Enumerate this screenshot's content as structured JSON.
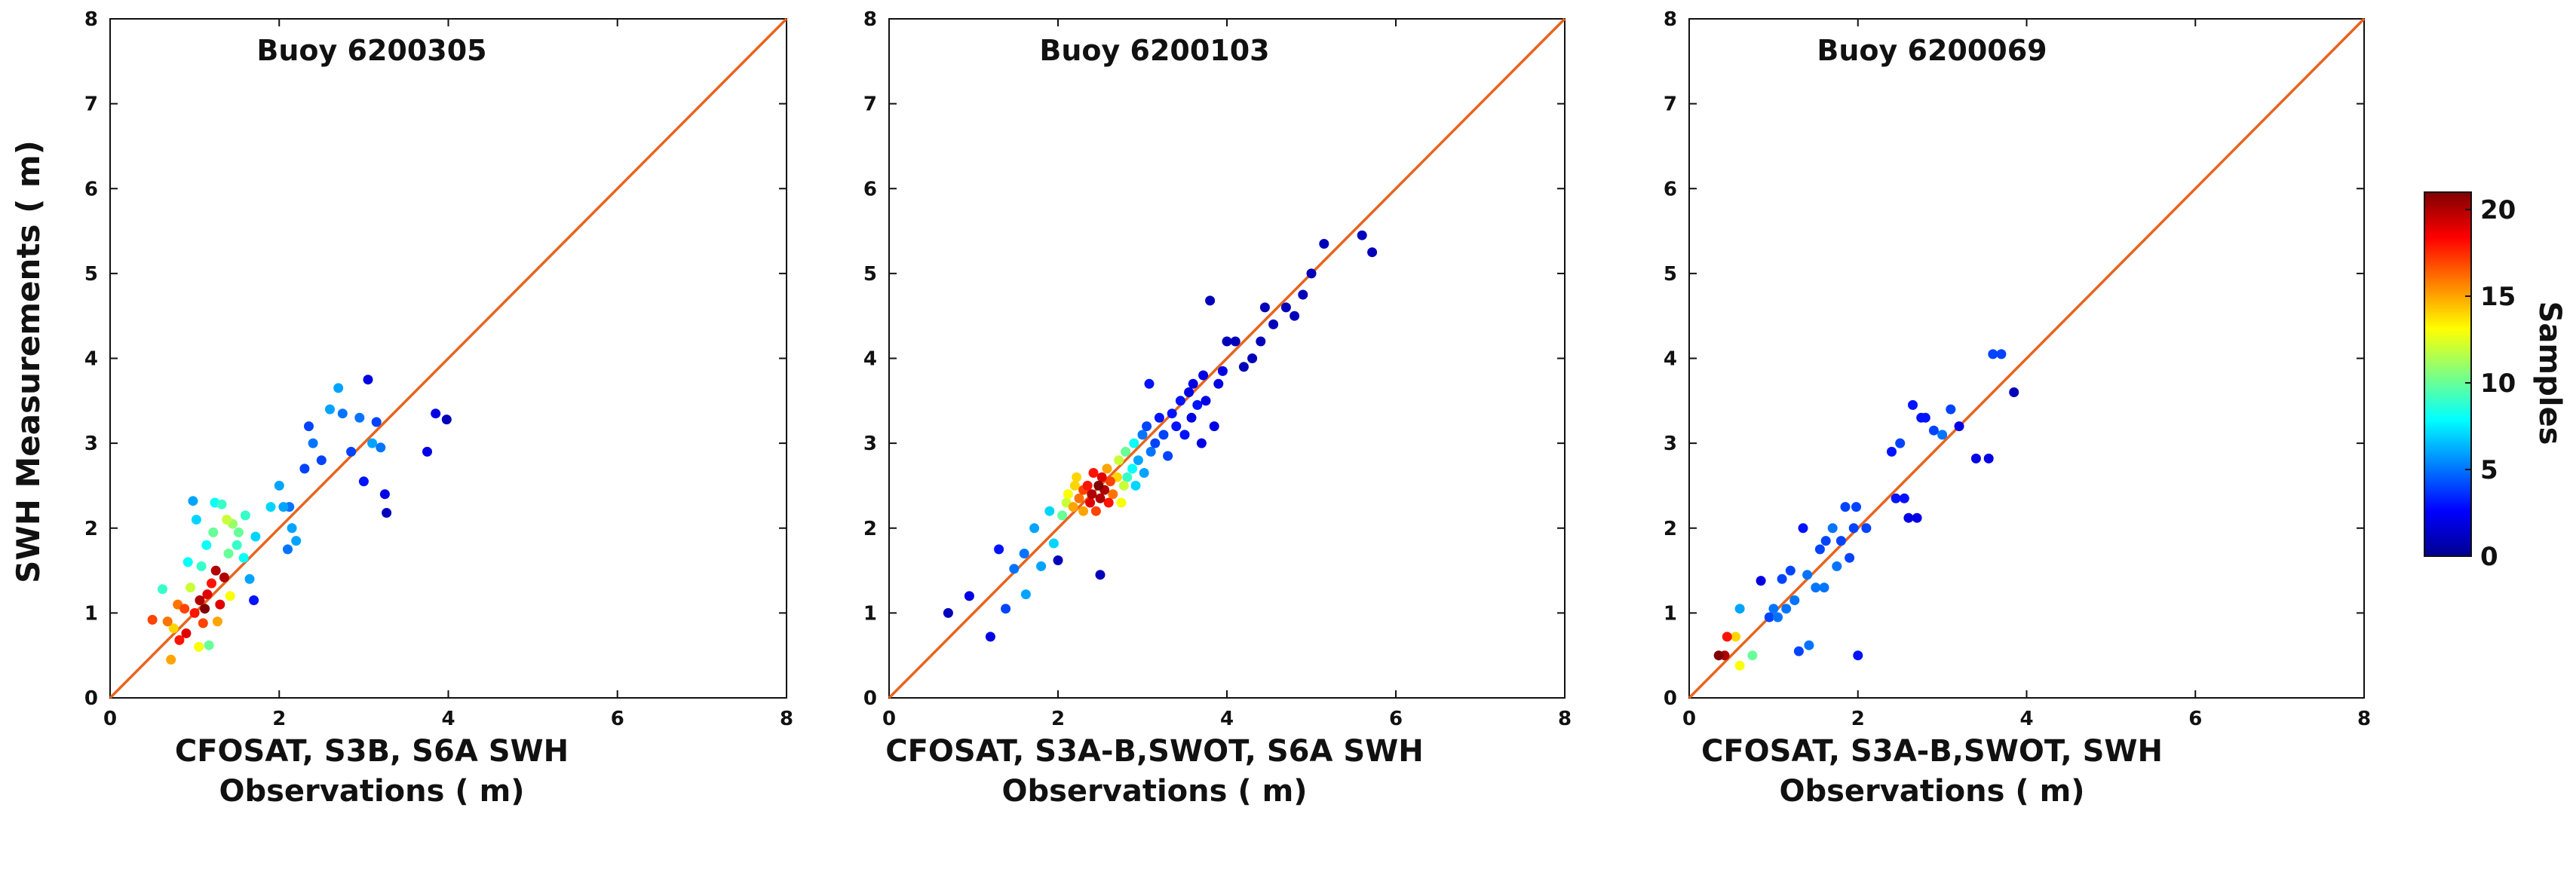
{
  "colors": {
    "identity_line": "#e8641e",
    "axis": "#111111",
    "colormap": [
      "#00008f",
      "#0000ff",
      "#0080ff",
      "#00ffff",
      "#80ff80",
      "#ffff00",
      "#ff8000",
      "#ff0000",
      "#800000"
    ]
  },
  "chart_data": [
    {
      "type": "scatter",
      "title": "Buoy 6200305",
      "xlabel_line1": "CFOSAT, S3B, S6A SWH",
      "xlabel_line2": "Observations ( m)",
      "ylabel": "SWH Measurements ( m)",
      "xlim": [
        0,
        8
      ],
      "ylim": [
        0,
        8
      ],
      "xticks": [
        "0",
        "2",
        "4",
        "6",
        "8"
      ],
      "yticks": [
        "0",
        "1",
        "2",
        "3",
        "4",
        "5",
        "6",
        "7",
        "8"
      ],
      "identity_line": true,
      "color_label": "Samples",
      "points": [
        [
          0.5,
          0.92,
          17
        ],
        [
          0.62,
          1.28,
          9
        ],
        [
          0.68,
          0.9,
          16
        ],
        [
          0.72,
          0.45,
          15
        ],
        [
          0.75,
          0.82,
          14
        ],
        [
          0.8,
          1.1,
          16
        ],
        [
          0.82,
          0.68,
          18
        ],
        [
          0.88,
          1.05,
          17
        ],
        [
          0.9,
          0.76,
          19
        ],
        [
          0.92,
          1.6,
          8
        ],
        [
          0.95,
          1.3,
          12
        ],
        [
          0.98,
          2.32,
          6
        ],
        [
          1.0,
          1.0,
          18
        ],
        [
          1.02,
          2.1,
          7
        ],
        [
          1.05,
          0.6,
          13
        ],
        [
          1.06,
          1.15,
          20
        ],
        [
          1.08,
          1.55,
          9
        ],
        [
          1.1,
          0.88,
          17
        ],
        [
          1.12,
          1.05,
          21
        ],
        [
          1.14,
          1.8,
          8
        ],
        [
          1.15,
          1.22,
          19
        ],
        [
          1.17,
          0.62,
          10
        ],
        [
          1.2,
          1.35,
          18
        ],
        [
          1.22,
          1.95,
          10
        ],
        [
          1.24,
          2.3,
          8
        ],
        [
          1.25,
          1.5,
          20
        ],
        [
          1.27,
          0.9,
          15
        ],
        [
          1.3,
          1.1,
          19
        ],
        [
          1.32,
          2.28,
          9
        ],
        [
          1.35,
          1.42,
          20
        ],
        [
          1.38,
          2.1,
          12
        ],
        [
          1.4,
          1.7,
          10
        ],
        [
          1.42,
          1.2,
          13
        ],
        [
          1.45,
          2.05,
          11
        ],
        [
          1.5,
          1.8,
          9
        ],
        [
          1.52,
          1.95,
          10
        ],
        [
          1.58,
          1.65,
          8
        ],
        [
          1.6,
          2.15,
          9
        ],
        [
          1.65,
          1.4,
          6
        ],
        [
          1.7,
          1.15,
          3
        ],
        [
          1.72,
          1.9,
          7
        ],
        [
          1.9,
          2.25,
          7
        ],
        [
          2.0,
          2.5,
          6
        ],
        [
          2.05,
          2.25,
          6
        ],
        [
          2.1,
          1.75,
          5
        ],
        [
          2.12,
          2.25,
          5
        ],
        [
          2.15,
          2.0,
          6
        ],
        [
          2.2,
          1.85,
          6
        ],
        [
          2.3,
          2.7,
          4
        ],
        [
          2.35,
          3.2,
          4
        ],
        [
          2.4,
          3.0,
          5
        ],
        [
          2.5,
          2.8,
          4
        ],
        [
          2.6,
          3.4,
          6
        ],
        [
          2.7,
          3.65,
          6
        ],
        [
          2.75,
          3.35,
          5
        ],
        [
          2.85,
          2.9,
          4
        ],
        [
          2.95,
          3.3,
          5
        ],
        [
          3.0,
          2.55,
          3
        ],
        [
          3.05,
          3.75,
          2
        ],
        [
          3.1,
          3.0,
          6
        ],
        [
          3.15,
          3.25,
          4
        ],
        [
          3.2,
          2.95,
          5
        ],
        [
          3.25,
          2.4,
          2
        ],
        [
          3.27,
          2.18,
          1
        ],
        [
          3.75,
          2.9,
          2
        ],
        [
          3.85,
          3.35,
          2
        ],
        [
          3.98,
          3.28,
          1
        ]
      ]
    },
    {
      "type": "scatter",
      "title": "Buoy 6200103",
      "xlabel_line1": "CFOSAT, S3A-B,SWOT, S6A SWH",
      "xlabel_line2": "Observations ( m)",
      "xlim": [
        0,
        8
      ],
      "ylim": [
        0,
        8
      ],
      "xticks": [
        "0",
        "2",
        "4",
        "6",
        "8"
      ],
      "yticks": [
        "0",
        "1",
        "2",
        "3",
        "4",
        "5",
        "6",
        "7",
        "8"
      ],
      "identity_line": true,
      "points": [
        [
          0.7,
          1.0,
          1
        ],
        [
          0.95,
          1.2,
          2
        ],
        [
          1.2,
          0.72,
          2
        ],
        [
          1.3,
          1.75,
          3
        ],
        [
          1.38,
          1.05,
          4
        ],
        [
          1.48,
          1.52,
          5
        ],
        [
          1.6,
          1.7,
          5
        ],
        [
          1.62,
          1.22,
          6
        ],
        [
          1.72,
          2.0,
          6
        ],
        [
          1.8,
          1.55,
          6
        ],
        [
          1.9,
          2.2,
          7
        ],
        [
          1.95,
          1.82,
          7
        ],
        [
          2.0,
          1.62,
          1
        ],
        [
          2.05,
          2.15,
          10
        ],
        [
          2.1,
          2.3,
          12
        ],
        [
          2.12,
          2.4,
          13
        ],
        [
          2.18,
          2.25,
          15
        ],
        [
          2.2,
          2.5,
          14
        ],
        [
          2.22,
          2.6,
          14
        ],
        [
          2.25,
          2.35,
          16
        ],
        [
          2.3,
          2.2,
          15
        ],
        [
          2.3,
          2.45,
          17
        ],
        [
          2.35,
          2.5,
          18
        ],
        [
          2.38,
          2.3,
          19
        ],
        [
          2.4,
          2.4,
          20
        ],
        [
          2.42,
          2.65,
          18
        ],
        [
          2.45,
          2.2,
          17
        ],
        [
          2.48,
          2.5,
          21
        ],
        [
          2.5,
          2.35,
          20
        ],
        [
          2.5,
          1.45,
          1
        ],
        [
          2.52,
          2.6,
          19
        ],
        [
          2.55,
          2.45,
          20
        ],
        [
          2.58,
          2.7,
          15
        ],
        [
          2.6,
          2.3,
          18
        ],
        [
          2.62,
          2.55,
          17
        ],
        [
          2.65,
          2.4,
          16
        ],
        [
          2.7,
          2.6,
          14
        ],
        [
          2.72,
          2.8,
          12
        ],
        [
          2.75,
          2.3,
          13
        ],
        [
          2.78,
          2.5,
          12
        ],
        [
          2.8,
          2.9,
          10
        ],
        [
          2.82,
          2.6,
          9
        ],
        [
          2.88,
          2.7,
          8
        ],
        [
          2.9,
          3.0,
          8
        ],
        [
          2.92,
          2.5,
          7
        ],
        [
          2.95,
          2.8,
          6
        ],
        [
          3.0,
          3.1,
          5
        ],
        [
          3.02,
          2.65,
          6
        ],
        [
          3.05,
          3.2,
          4
        ],
        [
          3.08,
          3.7,
          3
        ],
        [
          3.1,
          2.9,
          5
        ],
        [
          3.15,
          3.0,
          4
        ],
        [
          3.2,
          3.3,
          3
        ],
        [
          3.25,
          3.1,
          4
        ],
        [
          3.3,
          2.85,
          4
        ],
        [
          3.35,
          3.35,
          3
        ],
        [
          3.4,
          3.2,
          3
        ],
        [
          3.45,
          3.5,
          3
        ],
        [
          3.5,
          3.1,
          3
        ],
        [
          3.55,
          3.6,
          2
        ],
        [
          3.58,
          3.3,
          2
        ],
        [
          3.6,
          3.7,
          2
        ],
        [
          3.65,
          3.45,
          3
        ],
        [
          3.7,
          3.0,
          2
        ],
        [
          3.72,
          3.8,
          2
        ],
        [
          3.75,
          3.5,
          2
        ],
        [
          3.8,
          4.68,
          1
        ],
        [
          3.85,
          3.2,
          2
        ],
        [
          3.9,
          3.7,
          2
        ],
        [
          3.95,
          3.85,
          2
        ],
        [
          4.0,
          4.2,
          1
        ],
        [
          4.1,
          4.2,
          1
        ],
        [
          4.2,
          3.9,
          1
        ],
        [
          4.3,
          4.0,
          1
        ],
        [
          4.4,
          4.2,
          1
        ],
        [
          4.45,
          4.6,
          1
        ],
        [
          4.55,
          4.4,
          1
        ],
        [
          4.7,
          4.6,
          1
        ],
        [
          4.8,
          4.5,
          1
        ],
        [
          4.9,
          4.75,
          1
        ],
        [
          5.0,
          5.0,
          1
        ],
        [
          5.15,
          5.35,
          1
        ],
        [
          5.6,
          5.45,
          1
        ],
        [
          5.72,
          5.25,
          1
        ]
      ]
    },
    {
      "type": "scatter",
      "title": "Buoy 6200069",
      "xlabel_line1": "CFOSAT, S3A-B,SWOT, SWH",
      "xlabel_line2": "Observations ( m)",
      "xlim": [
        0,
        8
      ],
      "ylim": [
        0,
        8
      ],
      "xticks": [
        "0",
        "2",
        "4",
        "6",
        "8"
      ],
      "yticks": [
        "0",
        "1",
        "2",
        "3",
        "4",
        "5",
        "6",
        "7",
        "8"
      ],
      "identity_line": true,
      "points": [
        [
          0.35,
          0.5,
          21
        ],
        [
          0.42,
          0.5,
          20
        ],
        [
          0.45,
          0.72,
          18
        ],
        [
          0.55,
          0.72,
          14
        ],
        [
          0.6,
          0.38,
          13
        ],
        [
          0.6,
          1.05,
          6
        ],
        [
          0.75,
          0.5,
          10
        ],
        [
          0.85,
          1.38,
          2
        ],
        [
          0.95,
          0.95,
          4
        ],
        [
          1.0,
          1.05,
          5
        ],
        [
          1.05,
          0.95,
          5
        ],
        [
          1.1,
          1.4,
          4
        ],
        [
          1.15,
          1.05,
          5
        ],
        [
          1.2,
          1.5,
          4
        ],
        [
          1.25,
          1.15,
          5
        ],
        [
          1.3,
          0.55,
          4
        ],
        [
          1.35,
          2.0,
          3
        ],
        [
          1.4,
          1.45,
          5
        ],
        [
          1.42,
          0.62,
          5
        ],
        [
          1.5,
          1.3,
          5
        ],
        [
          1.55,
          1.75,
          4
        ],
        [
          1.6,
          1.3,
          5
        ],
        [
          1.62,
          1.85,
          4
        ],
        [
          1.7,
          2.0,
          5
        ],
        [
          1.75,
          1.55,
          5
        ],
        [
          1.8,
          1.85,
          4
        ],
        [
          1.85,
          2.25,
          4
        ],
        [
          1.9,
          1.65,
          4
        ],
        [
          1.95,
          2.0,
          4
        ],
        [
          1.98,
          2.25,
          4
        ],
        [
          2.0,
          0.5,
          3
        ],
        [
          2.1,
          2.0,
          4
        ],
        [
          2.4,
          2.9,
          3
        ],
        [
          2.45,
          2.35,
          3
        ],
        [
          2.5,
          3.0,
          4
        ],
        [
          2.55,
          2.35,
          3
        ],
        [
          2.6,
          2.12,
          2
        ],
        [
          2.65,
          3.45,
          3
        ],
        [
          2.7,
          2.12,
          2
        ],
        [
          2.75,
          3.3,
          3
        ],
        [
          2.8,
          3.3,
          3
        ],
        [
          2.9,
          3.15,
          4
        ],
        [
          3.0,
          3.1,
          5
        ],
        [
          3.1,
          3.4,
          4
        ],
        [
          3.2,
          3.2,
          2
        ],
        [
          3.4,
          2.82,
          2
        ],
        [
          3.55,
          2.82,
          2
        ],
        [
          3.6,
          4.05,
          4
        ],
        [
          3.7,
          4.05,
          4
        ],
        [
          3.85,
          3.6,
          1
        ]
      ]
    }
  ],
  "colorbar": {
    "label": "Samples",
    "min": 0,
    "max": 21,
    "tick_values": [
      0,
      5,
      10,
      15,
      20
    ],
    "tick_labels": [
      "0",
      "5",
      "10",
      "15",
      "20"
    ]
  }
}
